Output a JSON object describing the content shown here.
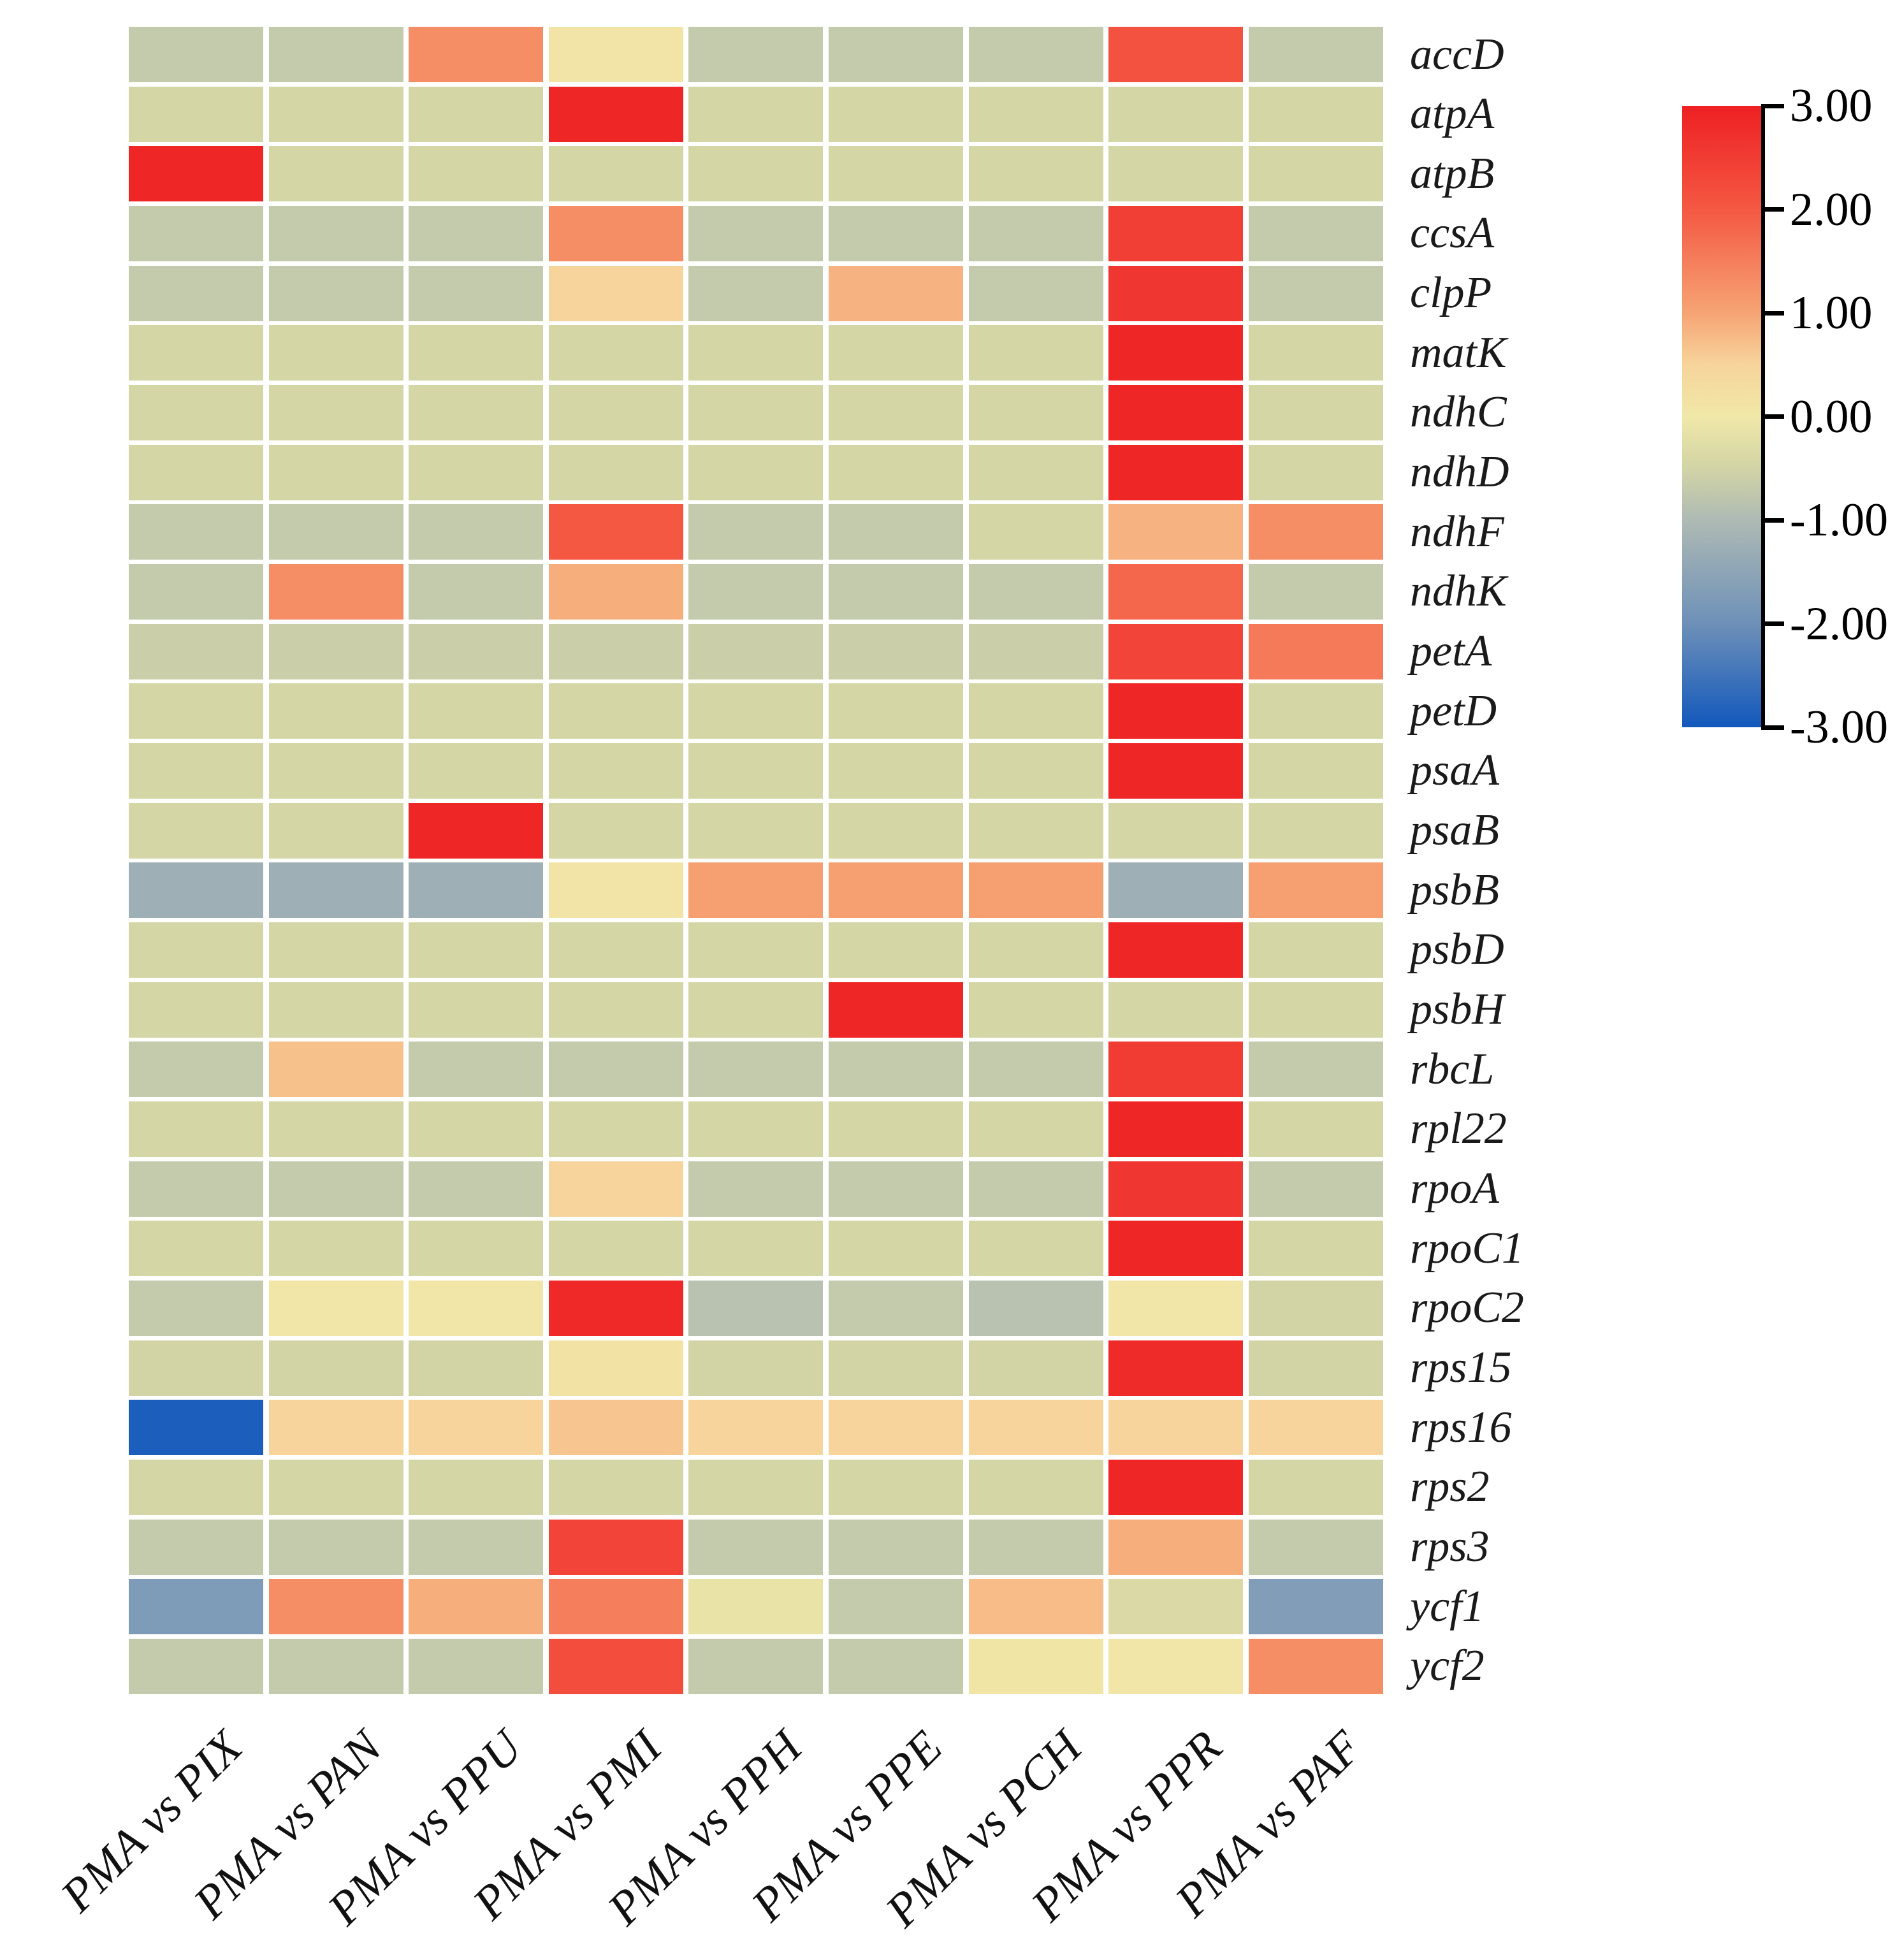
{
  "figure": {
    "background": "#ffffff",
    "description": "Gene expression heatmap of chloroplast genes across pairwise comparisons with a red-blue colorbar legend"
  },
  "chart_data": {
    "type": "heatmap",
    "title": "",
    "xlabel": "",
    "ylabel": "",
    "genes": [
      "accD",
      "atpA",
      "atpB",
      "ccsA",
      "clpP",
      "matK",
      "ndhC",
      "ndhD",
      "ndhF",
      "ndhK",
      "petA",
      "petD",
      "psaA",
      "psaB",
      "psbB",
      "psbD",
      "psbH",
      "rbcL",
      "rpl22",
      "rpoA",
      "rpoC1",
      "rpoC2",
      "rps15",
      "rps16",
      "rps2",
      "rps3",
      "ycf1",
      "ycf2"
    ],
    "comparisons": [
      "PMA vs PIX",
      "PMA vs PAN",
      "PMA vs PPU",
      "PMA vs PMI",
      "PMA vs PPH",
      "PMA vs PPE",
      "PMA vs PCH",
      "PMA vs PPR",
      "PMA vs PAF"
    ],
    "values": [
      [
        -0.7,
        -0.7,
        1.3,
        0.1,
        -0.7,
        -0.7,
        -0.7,
        2.1,
        -0.7
      ],
      [
        -0.45,
        -0.45,
        -0.45,
        2.9,
        -0.45,
        -0.45,
        -0.45,
        -0.45,
        -0.45
      ],
      [
        2.9,
        -0.45,
        -0.45,
        -0.45,
        -0.45,
        -0.45,
        -0.45,
        -0.45,
        -0.45
      ],
      [
        -0.7,
        -0.7,
        -0.7,
        1.3,
        -0.7,
        -0.7,
        -0.7,
        2.45,
        -0.7
      ],
      [
        -0.7,
        -0.7,
        -0.7,
        0.5,
        -0.7,
        0.85,
        -0.7,
        2.6,
        -0.7
      ],
      [
        -0.45,
        -0.45,
        -0.45,
        -0.45,
        -0.45,
        -0.45,
        -0.45,
        2.9,
        -0.45
      ],
      [
        -0.45,
        -0.45,
        -0.45,
        -0.45,
        -0.45,
        -0.45,
        -0.45,
        2.9,
        -0.45
      ],
      [
        -0.45,
        -0.45,
        -0.45,
        -0.45,
        -0.45,
        -0.45,
        -0.45,
        2.9,
        -0.45
      ],
      [
        -0.7,
        -0.7,
        -0.7,
        2.0,
        -0.7,
        -0.7,
        -0.45,
        0.85,
        1.3
      ],
      [
        -0.7,
        1.3,
        -0.7,
        0.9,
        -0.7,
        -0.7,
        -0.7,
        1.8,
        -0.7
      ],
      [
        -0.6,
        -0.6,
        -0.6,
        -0.6,
        -0.6,
        -0.6,
        -0.6,
        2.35,
        1.55
      ],
      [
        -0.45,
        -0.45,
        -0.45,
        -0.45,
        -0.45,
        -0.45,
        -0.45,
        2.9,
        -0.45
      ],
      [
        -0.45,
        -0.45,
        -0.45,
        -0.45,
        -0.45,
        -0.45,
        -0.45,
        2.9,
        -0.45
      ],
      [
        -0.45,
        -0.45,
        2.9,
        -0.45,
        -0.45,
        -0.45,
        -0.45,
        -0.45,
        -0.45
      ],
      [
        -1.25,
        -1.25,
        -1.25,
        0.1,
        1.05,
        1.05,
        1.05,
        -1.25,
        1.05
      ],
      [
        -0.45,
        -0.45,
        -0.45,
        -0.45,
        -0.45,
        -0.45,
        -0.45,
        2.9,
        -0.45
      ],
      [
        -0.45,
        -0.45,
        -0.45,
        -0.45,
        -0.45,
        2.9,
        -0.45,
        -0.45,
        -0.45
      ],
      [
        -0.7,
        0.7,
        -0.7,
        -0.7,
        -0.7,
        -0.7,
        -0.7,
        2.5,
        -0.7
      ],
      [
        -0.45,
        -0.45,
        -0.45,
        -0.45,
        -0.45,
        -0.45,
        -0.45,
        2.9,
        -0.45
      ],
      [
        -0.7,
        -0.7,
        -0.7,
        0.5,
        -0.7,
        -0.7,
        -0.7,
        2.6,
        -0.7
      ],
      [
        -0.45,
        -0.45,
        -0.45,
        -0.45,
        -0.45,
        -0.45,
        -0.45,
        2.9,
        -0.45
      ],
      [
        -0.7,
        0.05,
        0.05,
        2.85,
        -0.85,
        -0.7,
        -0.85,
        0.05,
        -0.5
      ],
      [
        -0.5,
        -0.5,
        -0.5,
        0.15,
        -0.5,
        -0.5,
        -0.5,
        2.8,
        -0.5
      ],
      [
        -2.9,
        0.5,
        0.5,
        0.65,
        0.5,
        0.5,
        0.5,
        0.5,
        0.5
      ],
      [
        -0.45,
        -0.45,
        -0.45,
        -0.45,
        -0.45,
        -0.45,
        -0.45,
        2.9,
        -0.45
      ],
      [
        -0.7,
        -0.7,
        -0.7,
        2.35,
        -0.7,
        -0.7,
        -0.7,
        0.9,
        -0.7
      ],
      [
        -1.75,
        1.3,
        0.9,
        1.5,
        -0.12,
        -0.7,
        0.75,
        -0.35,
        -1.7
      ],
      [
        -0.7,
        -0.7,
        -0.7,
        2.2,
        -0.7,
        -0.7,
        0.08,
        0.05,
        1.3
      ]
    ],
    "value_range": [
      -3,
      3
    ],
    "legend_position": "right",
    "colorbar": {
      "tick_labels": [
        "3.00",
        "2.00",
        "1.00",
        "0.00",
        "-1.00",
        "-2.00",
        "-3.00"
      ],
      "tick_values": [
        3,
        2,
        1,
        0,
        -1,
        -2,
        -3
      ],
      "gradient_stops": [
        {
          "value": 3,
          "color": "#ee2023"
        },
        {
          "value": 2,
          "color": "#f45843"
        },
        {
          "value": 1,
          "color": "#f6a474"
        },
        {
          "value": 0.5,
          "color": "#f7d49c"
        },
        {
          "value": 0,
          "color": "#f0e8a8"
        },
        {
          "value": -0.5,
          "color": "#d2d4a6"
        },
        {
          "value": -1,
          "color": "#aebab4"
        },
        {
          "value": -2,
          "color": "#6e90b8"
        },
        {
          "value": -3,
          "color": "#1258bc"
        }
      ]
    }
  }
}
